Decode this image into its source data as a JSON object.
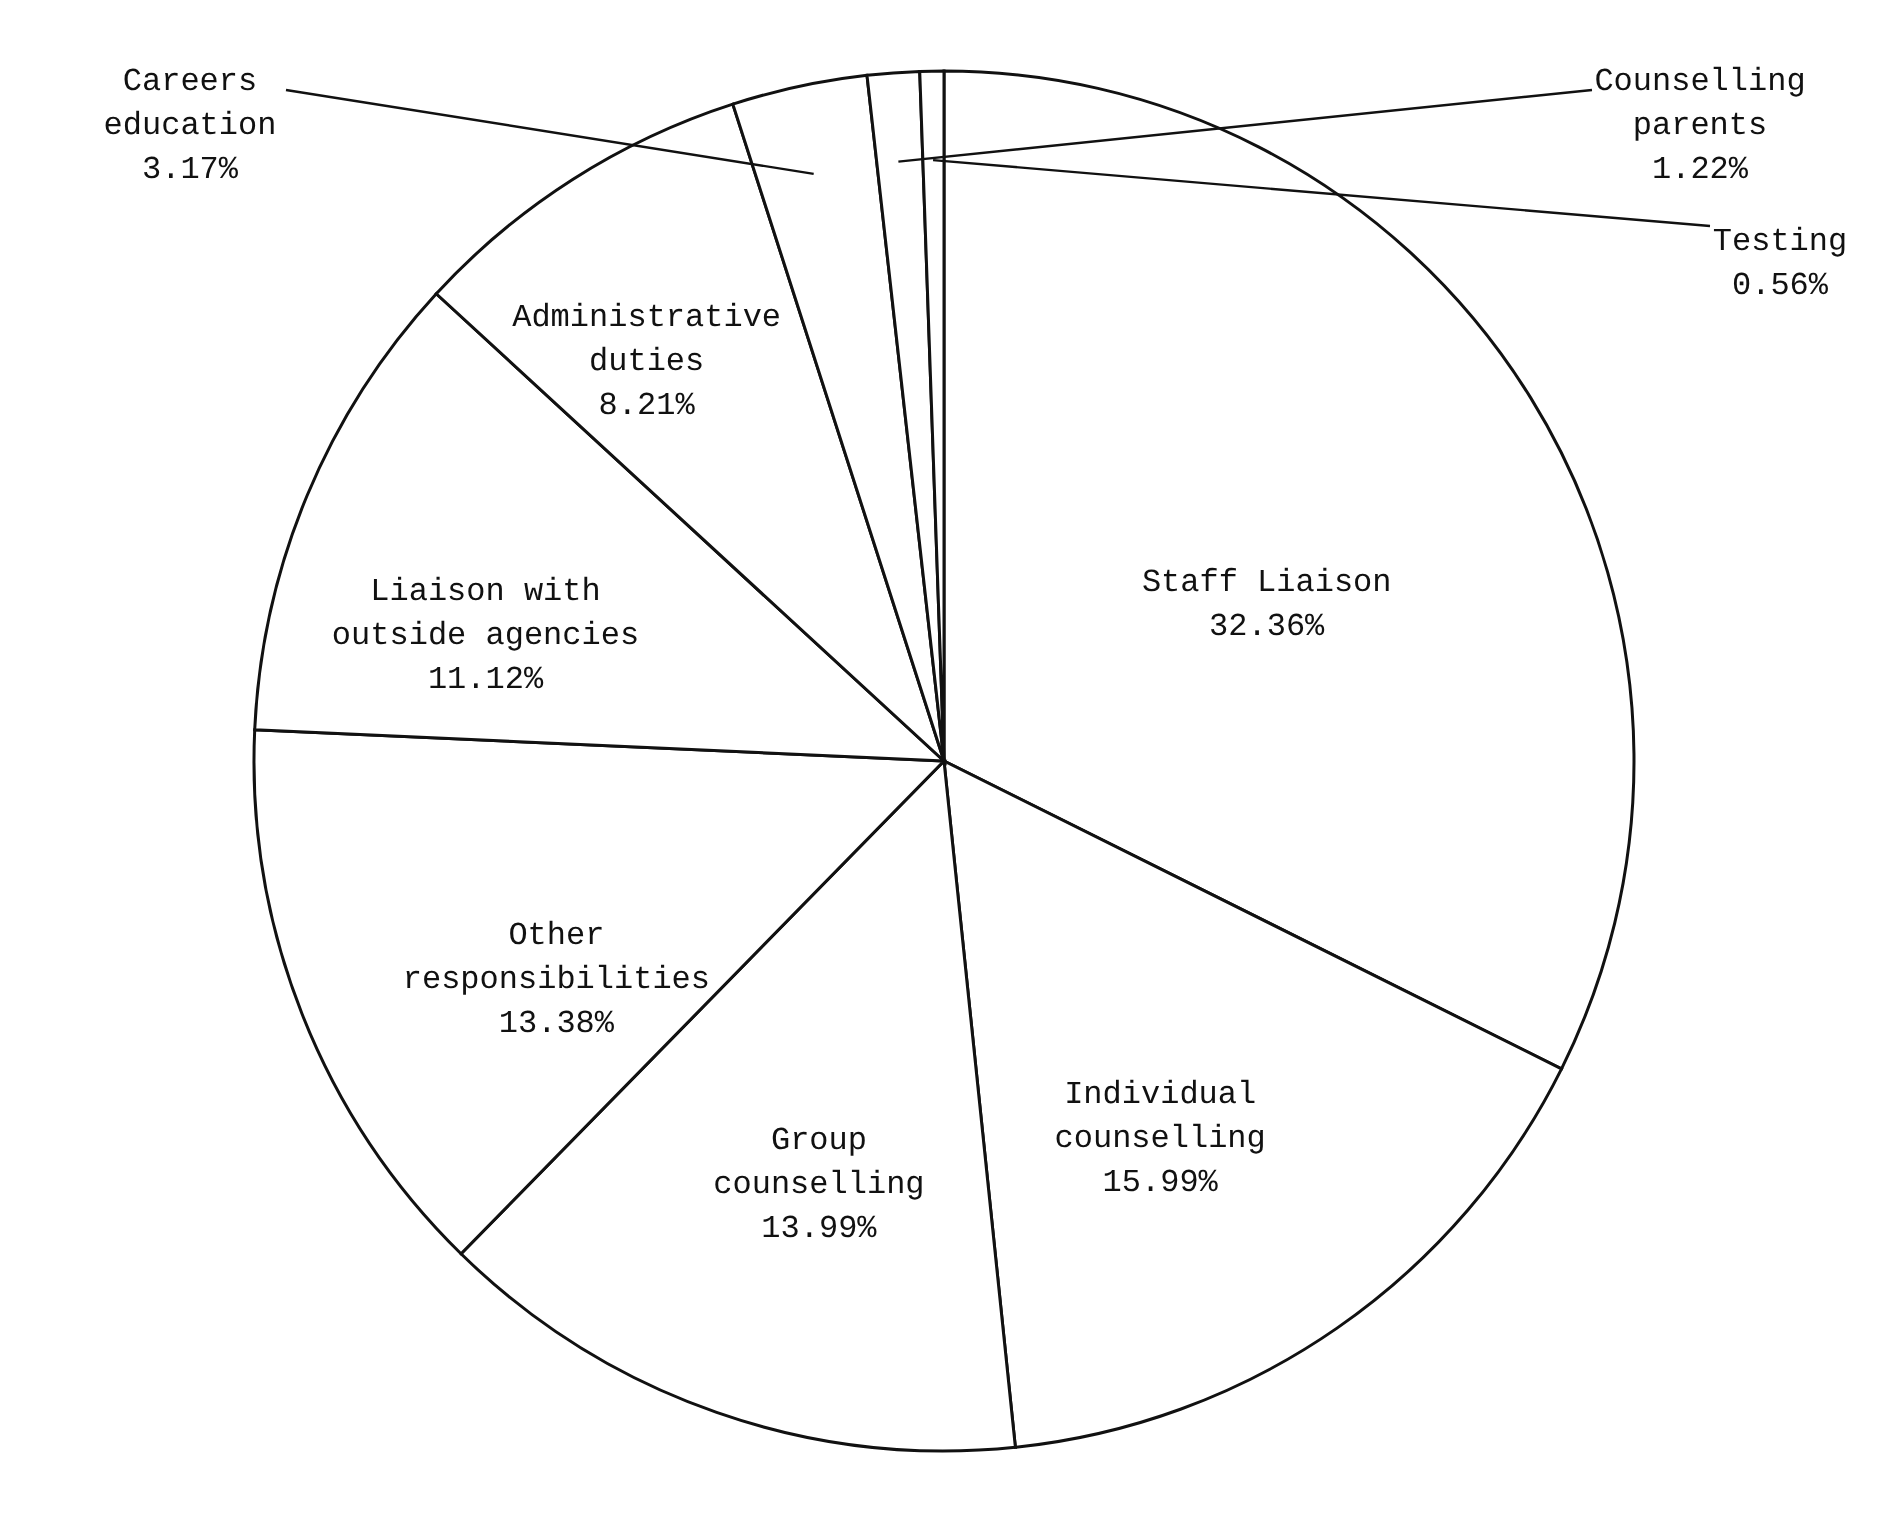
{
  "chart_data": {
    "type": "pie",
    "categories": [
      "Staff Liaison",
      "Individual counselling",
      "Group counselling",
      "Other responsibilities",
      "Liaison with outside agencies",
      "Administrative duties",
      "Careers education",
      "Counselling parents",
      "Testing"
    ],
    "values": [
      32.36,
      15.99,
      13.99,
      13.38,
      11.12,
      8.21,
      3.17,
      1.22,
      0.56
    ],
    "value_labels": [
      "32.36%",
      "15.99%",
      "13.99%",
      "13.38%",
      "11.12%",
      "8.21%",
      "3.17%",
      "1.22%",
      "0.56%"
    ],
    "colors": [
      "#ffffff",
      "#ffffff",
      "#ffffff",
      "#ffffff",
      "#ffffff",
      "#ffffff",
      "#ffffff",
      "#ffffff",
      "#ffffff"
    ]
  }
}
